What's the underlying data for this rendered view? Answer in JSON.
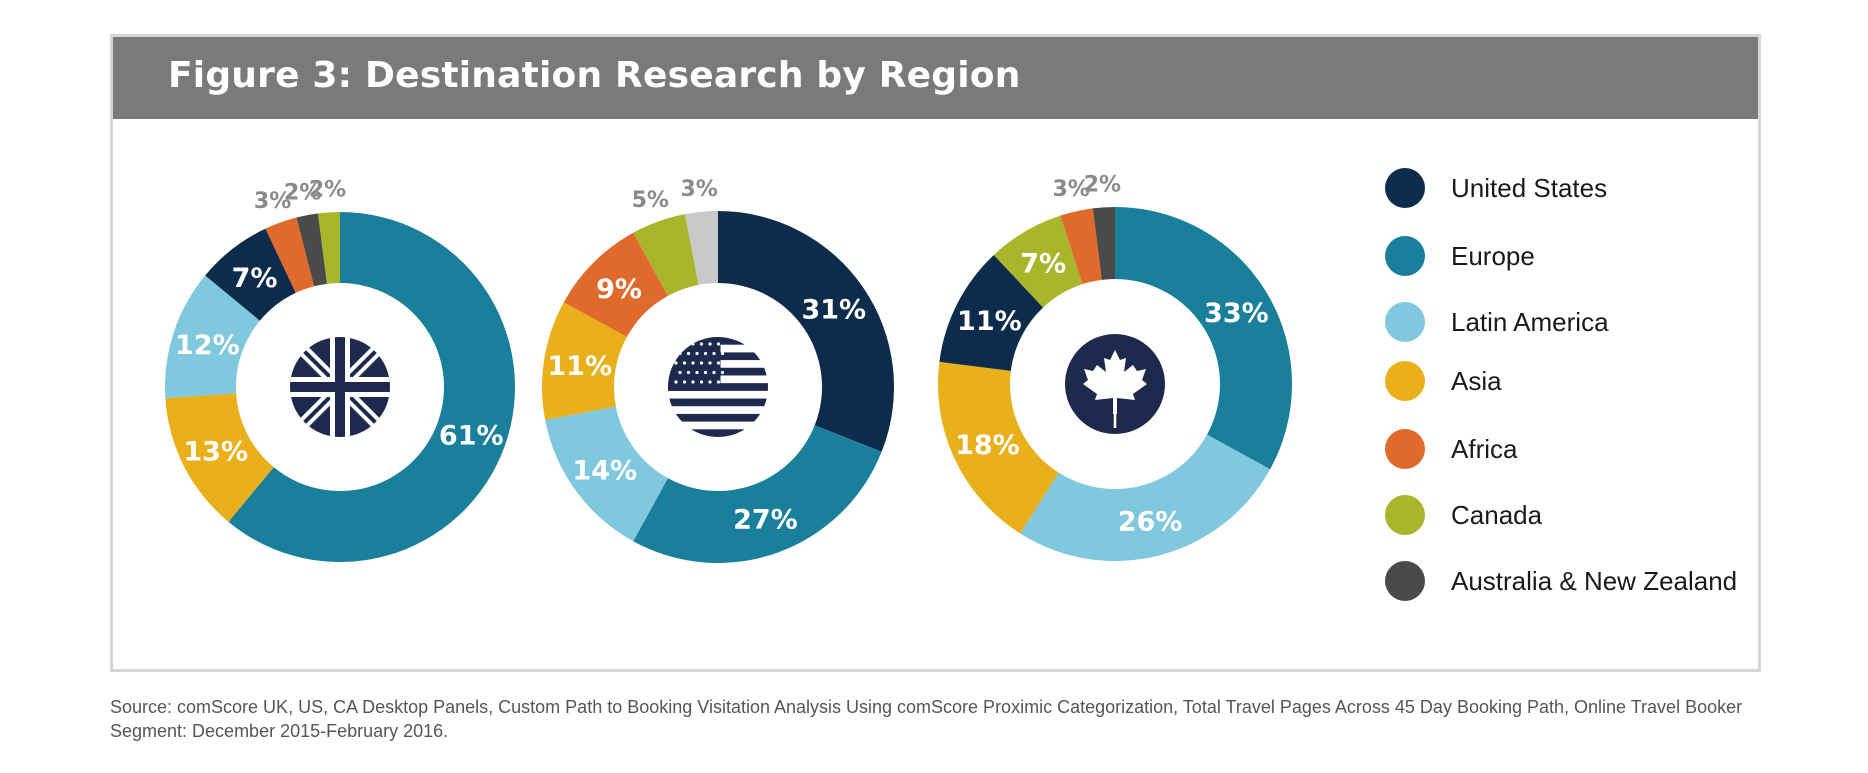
{
  "header": {
    "title": "Figure 3: Destination Research by Region"
  },
  "colors": {
    "United States": "#0d2c4b",
    "Europe": "#1a7f9b",
    "Latin America": "#7fc8de",
    "Asia": "#eab01b",
    "Africa": "#e0692c",
    "Canada": "#a9b52b",
    "Australia & New Zealand": "#4a4a4a",
    "unlabeled": "#c8c8c8"
  },
  "legend": [
    {
      "label": "United States"
    },
    {
      "label": "Europe"
    },
    {
      "label": "Latin America"
    },
    {
      "label": "Asia"
    },
    {
      "label": "Africa"
    },
    {
      "label": "Canada"
    },
    {
      "label": "Australia & New Zealand"
    }
  ],
  "chart_data": [
    {
      "type": "pie",
      "icon": "uk-flag-icon",
      "slices": [
        {
          "region": "Europe",
          "value": 61,
          "label": "61%"
        },
        {
          "region": "Asia",
          "value": 13,
          "label": "13%"
        },
        {
          "region": "Latin America",
          "value": 12,
          "label": "12%"
        },
        {
          "region": "United States",
          "value": 7,
          "label": "7%"
        },
        {
          "region": "Africa",
          "value": 3,
          "label": "3%"
        },
        {
          "region": "Australia & New Zealand",
          "value": 2,
          "label": "2%"
        },
        {
          "region": "Canada",
          "value": 2,
          "label": "2%"
        }
      ]
    },
    {
      "type": "pie",
      "icon": "us-flag-icon",
      "slices": [
        {
          "region": "United States",
          "value": 31,
          "label": "31%"
        },
        {
          "region": "Europe",
          "value": 27,
          "label": "27%"
        },
        {
          "region": "Latin America",
          "value": 14,
          "label": "14%"
        },
        {
          "region": "Asia",
          "value": 11,
          "label": "11%"
        },
        {
          "region": "Africa",
          "value": 9,
          "label": "9%"
        },
        {
          "region": "Canada",
          "value": 5,
          "label": "5%"
        },
        {
          "region": "unlabeled",
          "value": 3,
          "label": "3%"
        }
      ]
    },
    {
      "type": "pie",
      "icon": "canada-flag-icon",
      "slices": [
        {
          "region": "Europe",
          "value": 33,
          "label": "33%"
        },
        {
          "region": "Latin America",
          "value": 26,
          "label": "26%"
        },
        {
          "region": "Asia",
          "value": 18,
          "label": "18%"
        },
        {
          "region": "United States",
          "value": 11,
          "label": "11%"
        },
        {
          "region": "Canada",
          "value": 7,
          "label": "7%"
        },
        {
          "region": "Africa",
          "value": 3,
          "label": "3%"
        },
        {
          "region": "Australia & New Zealand",
          "value": 2,
          "label": "2%"
        }
      ]
    }
  ],
  "source": "Source: comScore UK, US, CA Desktop Panels, Custom Path to Booking Visitation Analysis Using comScore Proximic Categorization, Total Travel Pages Across 45 Day Booking Path, Online Travel Booker Segment: December 2015-February 2016."
}
